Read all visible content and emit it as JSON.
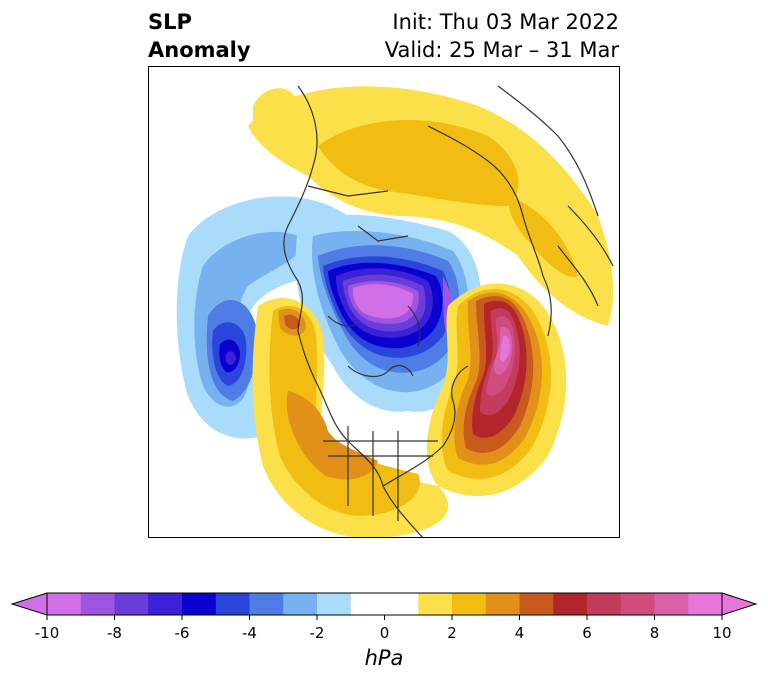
{
  "title": {
    "left_line1": "SLP",
    "left_line2": "Anomaly",
    "init": "Init: Thu 03 Mar 2022",
    "valid": "Valid: 25 Mar – 31 Mar"
  },
  "colorbar": {
    "units": "hPa",
    "extend": "both",
    "ticks": [
      "-10",
      "-8",
      "-6",
      "-4",
      "-2",
      "0",
      "2",
      "4",
      "6",
      "8",
      "10"
    ],
    "levels": [
      -10,
      -9,
      -8,
      -7,
      -6,
      -5,
      -4,
      -3,
      -2,
      -1,
      1,
      2,
      3,
      4,
      5,
      6,
      7,
      8,
      9,
      10
    ],
    "colors": [
      "#d16fe6",
      "#a055e0",
      "#6a3ddb",
      "#3b22d6",
      "#0a00cf",
      "#2a45dc",
      "#4f7ce5",
      "#78b1f0",
      "#a9dbfa",
      "#ffffff",
      "#fbe04a",
      "#f1bd12",
      "#e1901a",
      "#c95a1e",
      "#b2262b",
      "#c43c5c",
      "#cf4c7e",
      "#da60a8",
      "#e676d9"
    ],
    "under_color": "#d16fe6",
    "over_color": "#e676d9"
  },
  "map": {
    "projection": "north-polar-stereographic",
    "region": "Northern Hemisphere",
    "positive_anomaly_centers": [
      "north-atlantic",
      "western-north-america",
      "arctic-eurasia"
    ],
    "negative_anomaly_centers": [
      "arctic",
      "north-pacific"
    ]
  }
}
